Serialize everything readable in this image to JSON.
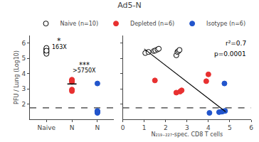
{
  "chart_data": [
    {
      "type": "scatter",
      "title": "Ad5-N",
      "legend": "top",
      "grid": false,
      "ylabel": "PFU / Lung (Log10)",
      "xlim": [
        -0.65,
        2.65
      ],
      "xticks": [
        {
          "value": 0,
          "label": "Naive"
        },
        {
          "value": 1,
          "label": "N"
        },
        {
          "value": 2,
          "label": "N"
        }
      ],
      "ylim": [
        1.0,
        6.5
      ],
      "yticks": [
        2,
        3,
        4,
        5,
        6
      ],
      "series": [
        {
          "name": "Naive (n=10)",
          "color": "white",
          "x": [
            0,
            0,
            0,
            0,
            0,
            0,
            0,
            0,
            0,
            0
          ],
          "values": [
            5.35,
            5.42,
            5.48,
            5.52,
            5.58,
            5.63,
            5.68,
            5.44,
            5.3,
            5.5
          ]
        },
        {
          "name": "Depleted (n=6)",
          "color": "#e83030",
          "x": [
            1,
            1,
            1,
            1,
            1,
            1
          ],
          "values": [
            2.85,
            2.95,
            3.45,
            3.5,
            3.55,
            3.6
          ],
          "mean": 3.316666666666667
        },
        {
          "name": "Isotype (n=6)",
          "color": "#2255cc",
          "x": [
            2,
            2,
            2,
            2,
            2,
            2
          ],
          "values": [
            1.42,
            1.47,
            1.5,
            1.52,
            1.55,
            3.35
          ]
        }
      ],
      "reference_line": 1.75,
      "annotations": [
        "*",
        "163X",
        "***",
        ">5750X"
      ]
    },
    {
      "type": "scatter",
      "grid": false,
      "tick_labels": "x",
      "xlabel": "N₂₁₉₋₂₂₇-spec. CD8 T cells",
      "xlim": [
        0,
        6
      ],
      "xticks": [
        0,
        1,
        2,
        3,
        4,
        5,
        6
      ],
      "ylim": [
        1.0,
        6.5
      ],
      "yticks": [
        2,
        3,
        4,
        5,
        6
      ],
      "series": [
        {
          "name": "Naive (n=10)",
          "color": "white",
          "x": [
            1.05,
            1.2,
            1.45,
            1.52,
            1.62,
            1.68,
            2.5,
            2.55,
            2.6,
            2.65
          ],
          "values": [
            5.35,
            5.42,
            5.48,
            5.52,
            5.58,
            5.63,
            5.2,
            5.42,
            5.48,
            5.55
          ]
        },
        {
          "name": "Depleted (n=6)",
          "color": "#e83030",
          "x": [
            1.5,
            2.5,
            2.68,
            2.75,
            3.9,
            4.0
          ],
          "values": [
            3.55,
            2.75,
            2.82,
            2.9,
            3.5,
            3.95
          ]
        },
        {
          "name": "Isotype (n=6)",
          "color": "#2255cc",
          "x": [
            4.05,
            4.5,
            4.62,
            4.68,
            4.78,
            4.75
          ],
          "values": [
            1.42,
            1.47,
            1.5,
            1.52,
            1.55,
            3.35
          ]
        }
      ],
      "regression": {
        "x": [
          1.0,
          4.8
        ],
        "values": [
          5.62,
          1.5
        ]
      },
      "reference_line": 1.75,
      "annotations": [
        "r²=0.7",
        "p=0.0001"
      ]
    }
  ]
}
